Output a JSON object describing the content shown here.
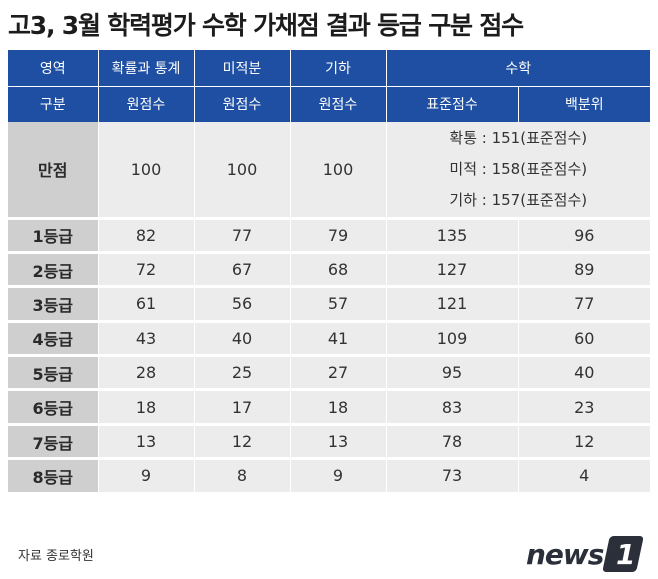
{
  "title": "고3, 3월 학력평가 수학 가채점 결과 등급 구분 점수",
  "header": {
    "row1": [
      "영역",
      "확률과 통계",
      "미적분",
      "기하",
      "수학"
    ],
    "row2": [
      "구분",
      "원점수",
      "원점수",
      "원점수",
      "표준점수",
      "백분위"
    ]
  },
  "full_score": {
    "label": "만점",
    "values": [
      "100",
      "100",
      "100"
    ],
    "standard_scores": [
      "확통 : 151(표준점수)",
      "미적 : 158(표준점수)",
      "기하 : 157(표준점수)"
    ]
  },
  "grades": [
    {
      "label": "1등급",
      "prob": "82",
      "calc": "77",
      "geo": "79",
      "std": "135",
      "pct": "96"
    },
    {
      "label": "2등급",
      "prob": "72",
      "calc": "67",
      "geo": "68",
      "std": "127",
      "pct": "89"
    },
    {
      "label": "3등급",
      "prob": "61",
      "calc": "56",
      "geo": "57",
      "std": "121",
      "pct": "77"
    },
    {
      "label": "4등급",
      "prob": "43",
      "calc": "40",
      "geo": "41",
      "std": "109",
      "pct": "60"
    },
    {
      "label": "5등급",
      "prob": "28",
      "calc": "25",
      "geo": "27",
      "std": "95",
      "pct": "40"
    },
    {
      "label": "6등급",
      "prob": "18",
      "calc": "17",
      "geo": "18",
      "std": "83",
      "pct": "23"
    },
    {
      "label": "7등급",
      "prob": "13",
      "calc": "12",
      "geo": "13",
      "std": "78",
      "pct": "12"
    },
    {
      "label": "8등급",
      "prob": "9",
      "calc": "8",
      "geo": "9",
      "std": "73",
      "pct": "4"
    }
  ],
  "source": "자료 종로학원",
  "logo": {
    "text": "news",
    "badge": "1",
    "color": "#2a2f3a"
  },
  "colors": {
    "header": "#1e4fa2",
    "label_cell": "#cfcfcf",
    "data_cell": "#ececec"
  }
}
